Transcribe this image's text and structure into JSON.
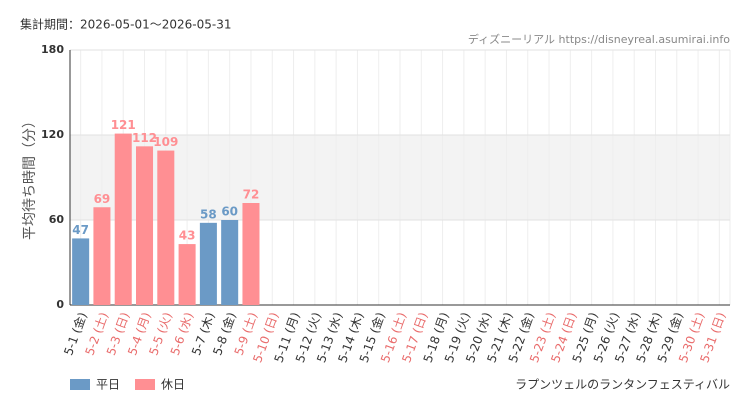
{
  "chart_data": {
    "type": "bar",
    "title": "集計期間：2026-05-01～2026-05-31",
    "credit": "ディズニーリアル https://disneyreal.asumirai.info",
    "y_label": "平均待ち時間（分）",
    "footer": "ラプンツェルのランタンフェスティバル",
    "categories": [
      "5-1 (金)",
      "5-2 (土)",
      "5-3 (日)",
      "5-4 (月)",
      "5-5 (火)",
      "5-6 (水)",
      "5-7 (木)",
      "5-8 (金)",
      "5-9 (土)",
      "5-10 (日)",
      "5-11 (月)",
      "5-12 (火)",
      "5-13 (水)",
      "5-14 (木)",
      "5-15 (金)",
      "5-16 (土)",
      "5-17 (日)",
      "5-18 (月)",
      "5-19 (火)",
      "5-20 (水)",
      "5-21 (木)",
      "5-22 (金)",
      "5-23 (土)",
      "5-24 (日)",
      "5-25 (月)",
      "5-26 (火)",
      "5-27 (水)",
      "5-28 (木)",
      "5-29 (金)",
      "5-30 (土)",
      "5-31 (日)"
    ],
    "category_label_colors": [
      "#333",
      "#e96b6b",
      "#e96b6b",
      "#e96b6b",
      "#e96b6b",
      "#e96b6b",
      "#333",
      "#333",
      "#e96b6b",
      "#e96b6b",
      "#333",
      "#333",
      "#333",
      "#333",
      "#333",
      "#e96b6b",
      "#e96b6b",
      "#333",
      "#333",
      "#333",
      "#333",
      "#333",
      "#e96b6b",
      "#e96b6b",
      "#333",
      "#333",
      "#333",
      "#333",
      "#333",
      "#e96b6b",
      "#e96b6b"
    ],
    "series": [
      {
        "name": "平日",
        "color": "#6b9ac6",
        "values": [
          47,
          null,
          null,
          null,
          null,
          null,
          58,
          60,
          null,
          null,
          null,
          null,
          null,
          null,
          null,
          null,
          null,
          null,
          null,
          null,
          null,
          null,
          null,
          null,
          null,
          null,
          null,
          null,
          null,
          null,
          null
        ]
      },
      {
        "name": "休日",
        "color": "#ff8f93",
        "values": [
          null,
          69,
          121,
          112,
          109,
          43,
          null,
          null,
          72,
          null,
          null,
          null,
          null,
          null,
          null,
          null,
          null,
          null,
          null,
          null,
          null,
          null,
          null,
          null,
          null,
          null,
          null,
          null,
          null,
          null,
          null
        ]
      }
    ],
    "ylim": [
      0,
      180
    ],
    "yticks": [
      0,
      60,
      120,
      180
    ],
    "grid": true,
    "alternate_bands": true,
    "legend": "bottom-left"
  }
}
